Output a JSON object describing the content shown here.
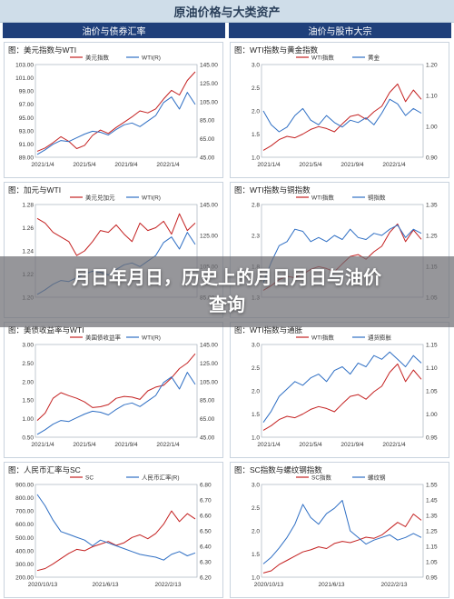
{
  "page": {
    "title": "原油价格与大类资产",
    "left_header": "油价与债券汇率",
    "right_header": "油价与股市大宗",
    "overlay_line1": "月日年月日，历史上的月日月日与油价",
    "overlay_line2": "查询"
  },
  "colors": {
    "red": "#c42121",
    "blue": "#2f6fc4",
    "header": "#1f3f7a"
  },
  "chart_data": [
    {
      "type": "line",
      "title": "图：美元指数与WTI",
      "legend": [
        "美元指数",
        "WTI(R)"
      ],
      "yticks_left": [
        "103.00",
        "101.00",
        "99.00",
        "97.00",
        "95.00",
        "93.00",
        "91.00",
        "89.00"
      ],
      "yticks_right": [
        "145.00",
        "125.00",
        "105.00",
        "85.00",
        "65.00",
        "45.00"
      ],
      "xticks": [
        "2021/1/4",
        "2021/5/4",
        "2021/9/4",
        "2022/1/4"
      ],
      "series": [
        {
          "name": "美元指数",
          "axis": "left",
          "ylim": [
            89,
            103
          ],
          "values": [
            89.9,
            90.4,
            91.2,
            92.1,
            91.4,
            90.3,
            90.8,
            92.3,
            93.1,
            92.6,
            93.5,
            94.3,
            95.1,
            96.0,
            95.7,
            96.3,
            97.8,
            99.1,
            98.4,
            100.6,
            101.9
          ]
        },
        {
          "name": "WTI(R)",
          "axis": "right",
          "ylim": [
            45,
            145
          ],
          "values": [
            48,
            53,
            59,
            63,
            62,
            66,
            70,
            73,
            72,
            69,
            75,
            80,
            82,
            78,
            84,
            90,
            104,
            110,
            97,
            115,
            102
          ]
        }
      ]
    },
    {
      "type": "line",
      "title": "图：WTI指数与黄金指数",
      "legend": [
        "WTI指数",
        "黄金"
      ],
      "yticks_left": [
        "3.0",
        "2.5",
        "2.0",
        "1.5",
        "1.0"
      ],
      "yticks_right": [
        "1.20",
        "1.10",
        "1.00",
        "0.90"
      ],
      "xticks": [
        "2021/1/4",
        "2021/5/4",
        "2021/9/4",
        "2022/1/4"
      ],
      "series": [
        {
          "name": "WTI指数",
          "axis": "left",
          "ylim": [
            1.0,
            3.0
          ],
          "values": [
            1.15,
            1.25,
            1.38,
            1.45,
            1.42,
            1.5,
            1.6,
            1.66,
            1.62,
            1.55,
            1.72,
            1.88,
            1.92,
            1.82,
            1.98,
            2.1,
            2.4,
            2.58,
            2.2,
            2.45,
            2.25
          ]
        },
        {
          "name": "黄金",
          "axis": "right",
          "ylim": [
            0.85,
            1.25
          ],
          "values": [
            1.05,
            0.99,
            0.96,
            0.98,
            1.03,
            1.06,
            1.01,
            0.99,
            1.03,
            1.0,
            0.98,
            1.01,
            1.0,
            1.02,
            0.99,
            1.04,
            1.1,
            1.08,
            1.03,
            1.06,
            1.04
          ]
        }
      ]
    },
    {
      "type": "line",
      "title": "图：加元与WTI",
      "legend": [
        "美元兑加元",
        "WTI(R)"
      ],
      "yticks_left": [
        "1.28",
        "1.26",
        "1.24",
        "1.22",
        "1.20"
      ],
      "yticks_right": [
        "145.00",
        "125.00",
        "105.00",
        "85.00"
      ],
      "xticks": [],
      "series": [
        {
          "name": "美元兑加元",
          "axis": "left",
          "ylim": [
            1.19,
            1.29
          ],
          "values": [
            1.275,
            1.27,
            1.26,
            1.255,
            1.25,
            1.235,
            1.24,
            1.25,
            1.262,
            1.26,
            1.268,
            1.258,
            1.25,
            1.27,
            1.262,
            1.265,
            1.272,
            1.258,
            1.28,
            1.262,
            1.27
          ]
        },
        {
          "name": "WTI(R)",
          "axis": "right",
          "ylim": [
            45,
            145
          ],
          "values": [
            48,
            53,
            59,
            63,
            62,
            66,
            70,
            73,
            72,
            69,
            75,
            80,
            82,
            78,
            84,
            90,
            104,
            110,
            97,
            115,
            102
          ]
        }
      ]
    },
    {
      "type": "line",
      "title": "图：WTI指数与铜指数",
      "legend": [
        "WTI指数",
        "铜指数"
      ],
      "yticks_left": [
        "2.8",
        "2.3",
        "1.8",
        "1.3"
      ],
      "yticks_right": [
        "1.35",
        "1.25",
        "1.15",
        "1.05"
      ],
      "xticks": [],
      "series": [
        {
          "name": "WTI指数",
          "axis": "left",
          "ylim": [
            1.0,
            3.0
          ],
          "values": [
            1.15,
            1.25,
            1.38,
            1.45,
            1.42,
            1.5,
            1.6,
            1.66,
            1.62,
            1.55,
            1.72,
            1.88,
            1.92,
            1.82,
            1.98,
            2.1,
            2.4,
            2.58,
            2.2,
            2.45,
            2.25
          ]
        },
        {
          "name": "铜指数",
          "axis": "right",
          "ylim": [
            0.95,
            1.4
          ],
          "values": [
            1.02,
            1.12,
            1.2,
            1.22,
            1.28,
            1.27,
            1.22,
            1.24,
            1.22,
            1.25,
            1.23,
            1.28,
            1.24,
            1.23,
            1.26,
            1.25,
            1.28,
            1.3,
            1.24,
            1.28,
            1.26
          ]
        }
      ]
    },
    {
      "type": "line",
      "title": "图：美债收益率与WTI",
      "legend": [
        "美国债收益率",
        "WTI(R)"
      ],
      "yticks_left": [
        "3.00",
        "2.50",
        "2.00",
        "1.50",
        "1.00",
        "0.50"
      ],
      "yticks_right": [
        "145.00",
        "125.00",
        "105.00",
        "85.00",
        "65.00",
        "45.00"
      ],
      "xticks": [
        "2021/1/4",
        "2021/5/4",
        "2021/9/4",
        "2022/1/4"
      ],
      "series": [
        {
          "name": "美国债收益率",
          "axis": "left",
          "ylim": [
            0.5,
            3.0
          ],
          "values": [
            0.95,
            1.15,
            1.55,
            1.7,
            1.62,
            1.55,
            1.45,
            1.3,
            1.32,
            1.38,
            1.55,
            1.6,
            1.58,
            1.52,
            1.75,
            1.85,
            1.9,
            2.1,
            2.35,
            2.5,
            2.75
          ]
        },
        {
          "name": "WTI(R)",
          "axis": "right",
          "ylim": [
            45,
            145
          ],
          "values": [
            48,
            53,
            59,
            63,
            62,
            66,
            70,
            73,
            72,
            69,
            75,
            80,
            82,
            78,
            84,
            90,
            104,
            110,
            97,
            115,
            102
          ]
        }
      ]
    },
    {
      "type": "line",
      "title": "图：WTI指数与通胀",
      "legend": [
        "WTI指数",
        "通货膨胀"
      ],
      "yticks_left": [
        "3.0",
        "2.5",
        "2.0",
        "1.5",
        "1.0"
      ],
      "yticks_right": [
        "1.15",
        "1.10",
        "1.05",
        "1.00",
        "0.95"
      ],
      "xticks": [
        "2021/1/4",
        "2021/5/4",
        "2021/9/4",
        "2022/1/4"
      ],
      "series": [
        {
          "name": "WTI指数",
          "axis": "left",
          "ylim": [
            1.0,
            3.0
          ],
          "values": [
            1.15,
            1.25,
            1.38,
            1.45,
            1.42,
            1.5,
            1.6,
            1.66,
            1.62,
            1.55,
            1.72,
            1.88,
            1.92,
            1.82,
            1.98,
            2.1,
            2.4,
            2.58,
            2.2,
            2.45,
            2.25
          ]
        },
        {
          "name": "通货膨胀",
          "axis": "right",
          "ylim": [
            0.93,
            1.18
          ],
          "values": [
            0.97,
            1.0,
            1.04,
            1.06,
            1.08,
            1.07,
            1.09,
            1.1,
            1.08,
            1.11,
            1.12,
            1.1,
            1.13,
            1.12,
            1.15,
            1.14,
            1.16,
            1.14,
            1.12,
            1.15,
            1.13
          ]
        }
      ]
    },
    {
      "type": "line",
      "title": "图：人民币汇率与SC",
      "legend": [
        "SC",
        "人民币汇率(R)"
      ],
      "yticks_left": [
        "900.00",
        "800.00",
        "700.00",
        "600.00",
        "500.00",
        "400.00",
        "300.00",
        "200.00"
      ],
      "yticks_right": [
        "6.80",
        "6.70",
        "6.60",
        "6.50",
        "6.40",
        "6.30",
        "6.20"
      ],
      "xticks": [
        "2020/10/13",
        "2021/6/13",
        "2022/2/13"
      ],
      "series": [
        {
          "name": "SC",
          "axis": "left",
          "ylim": [
            200,
            900
          ],
          "values": [
            250,
            265,
            300,
            340,
            380,
            410,
            400,
            430,
            450,
            470,
            440,
            460,
            500,
            520,
            490,
            530,
            600,
            700,
            620,
            680,
            640
          ]
        },
        {
          "name": "人民币汇率(R)",
          "axis": "right",
          "ylim": [
            6.2,
            6.85
          ],
          "values": [
            6.78,
            6.7,
            6.6,
            6.52,
            6.5,
            6.48,
            6.46,
            6.42,
            6.46,
            6.44,
            6.42,
            6.4,
            6.38,
            6.36,
            6.35,
            6.34,
            6.32,
            6.36,
            6.38,
            6.35,
            6.37
          ]
        }
      ]
    },
    {
      "type": "line",
      "title": "图：SC指数与螺纹钢指数",
      "legend": [
        "SC指数",
        "螺纹钢"
      ],
      "yticks_left": [
        "3.0",
        "2.5",
        "2.0",
        "1.5",
        "1.0"
      ],
      "yticks_right": [
        "1.55",
        "1.45",
        "1.35",
        "1.25",
        "1.15",
        "1.05",
        "0.95"
      ],
      "xticks": [
        "2020/10/13",
        "2021/6/13",
        "2022/2/13"
      ],
      "series": [
        {
          "name": "SC指数",
          "axis": "left",
          "ylim": [
            0.9,
            3.1
          ],
          "values": [
            1.0,
            1.05,
            1.2,
            1.3,
            1.4,
            1.5,
            1.55,
            1.62,
            1.58,
            1.7,
            1.75,
            1.72,
            1.78,
            1.85,
            1.82,
            1.9,
            2.05,
            2.2,
            2.1,
            2.4,
            2.25
          ]
        },
        {
          "name": "螺纹钢",
          "axis": "right",
          "ylim": [
            0.9,
            1.6
          ],
          "values": [
            1.0,
            1.05,
            1.12,
            1.2,
            1.3,
            1.45,
            1.35,
            1.3,
            1.38,
            1.42,
            1.48,
            1.25,
            1.2,
            1.15,
            1.18,
            1.2,
            1.22,
            1.18,
            1.2,
            1.23,
            1.2
          ]
        }
      ]
    }
  ]
}
